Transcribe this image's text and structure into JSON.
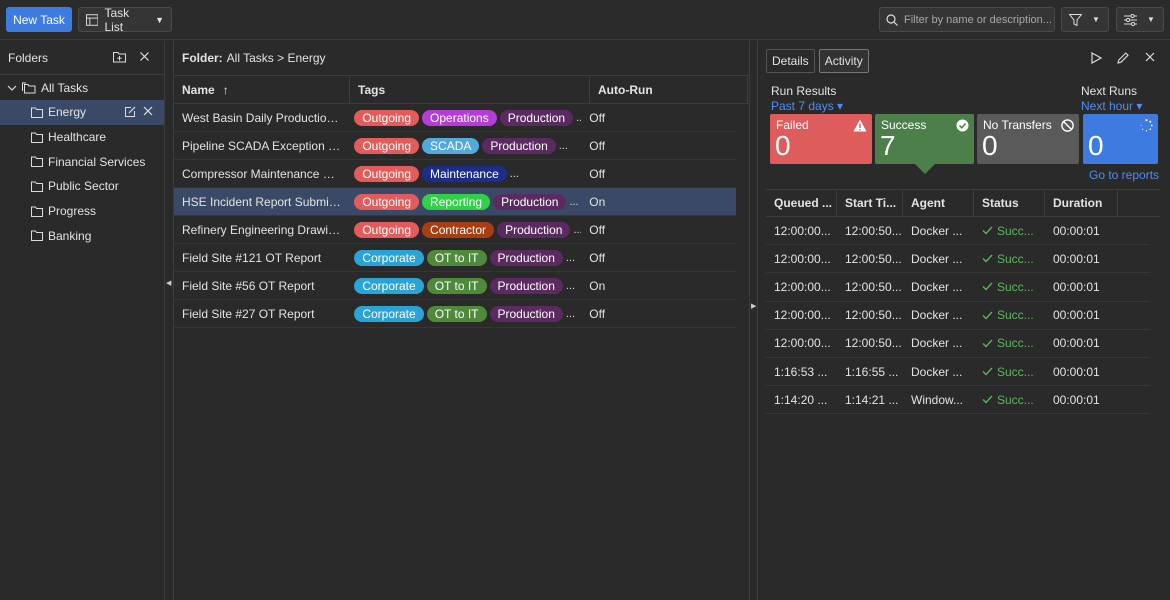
{
  "toolbar": {
    "new_task": "New Task",
    "task_list": "Task List",
    "filter_placeholder": "Filter by name or description..."
  },
  "folders": {
    "title": "Folders",
    "root": "All Tasks",
    "items": [
      {
        "label": "Energy",
        "selected": true
      },
      {
        "label": "Healthcare"
      },
      {
        "label": "Financial Services"
      },
      {
        "label": "Public Sector"
      },
      {
        "label": "Progress"
      },
      {
        "label": "Banking"
      }
    ]
  },
  "tasks": {
    "breadcrumb_label": "Folder:",
    "breadcrumb_path": "All Tasks > Energy",
    "columns": {
      "name": "Name",
      "sort_icon": "↑",
      "tags": "Tags",
      "autorun": "Auto-Run"
    },
    "rows": [
      {
        "name": "West Basin Daily Production ...",
        "tags": [
          {
            "label": "Outgoing",
            "color": "#e25c5c"
          },
          {
            "label": "Operations",
            "color": "#b43dd6"
          },
          {
            "label": "Production",
            "color": "#5a2a60"
          }
        ],
        "autorun": "Off"
      },
      {
        "name": "Pipeline SCADA Exception Ex...",
        "tags": [
          {
            "label": "Outgoing",
            "color": "#e25c5c"
          },
          {
            "label": "SCADA",
            "color": "#52a9dc"
          },
          {
            "label": "Production",
            "color": "#5a2a60"
          }
        ],
        "autorun": "Off"
      },
      {
        "name": "Compressor Maintenance Pa...",
        "tags": [
          {
            "label": "Outgoing",
            "color": "#e25c5c"
          },
          {
            "label": "Maintenance",
            "color": "#1d2d8c"
          }
        ],
        "autorun": "Off"
      },
      {
        "name": "HSE Incident Report Submiss...",
        "tags": [
          {
            "label": "Outgoing",
            "color": "#e25c5c"
          },
          {
            "label": "Reporting",
            "color": "#2fd147"
          },
          {
            "label": "Production",
            "color": "#5a2a60"
          }
        ],
        "autorun": "On",
        "selected": true
      },
      {
        "name": "Refinery Engineering Drawing...",
        "tags": [
          {
            "label": "Outgoing",
            "color": "#e25c5c"
          },
          {
            "label": "Contractor",
            "color": "#a83e14"
          },
          {
            "label": "Production",
            "color": "#5a2a60"
          }
        ],
        "autorun": "Off"
      },
      {
        "name": "Field Site #121 OT Report",
        "tags": [
          {
            "label": "Corporate",
            "color": "#2aa3d6"
          },
          {
            "label": "OT to IT",
            "color": "#4f8a3c"
          },
          {
            "label": "Production",
            "color": "#5a2a60"
          }
        ],
        "autorun": "Off"
      },
      {
        "name": "Field Site #56 OT Report",
        "tags": [
          {
            "label": "Corporate",
            "color": "#2aa3d6"
          },
          {
            "label": "OT to IT",
            "color": "#4f8a3c"
          },
          {
            "label": "Production",
            "color": "#5a2a60"
          }
        ],
        "autorun": "On"
      },
      {
        "name": "Field Site #27 OT Report",
        "tags": [
          {
            "label": "Corporate",
            "color": "#2aa3d6"
          },
          {
            "label": "OT to IT",
            "color": "#4f8a3c"
          },
          {
            "label": "Production",
            "color": "#5a2a60"
          }
        ],
        "autorun": "Off"
      }
    ]
  },
  "details": {
    "tabs": [
      {
        "label": "Details"
      },
      {
        "label": "Activity",
        "active": true
      }
    ],
    "run_results": "Run Results",
    "past_days": "Past 7 days ▾",
    "next_runs": "Next Runs",
    "next_hour": "Next hour ▾",
    "cards": {
      "failed": {
        "label": "Failed",
        "value": "0"
      },
      "success": {
        "label": "Success",
        "value": "7"
      },
      "no_transfers": {
        "label": "No Transfers",
        "value": "0"
      },
      "next": {
        "value": "0"
      }
    },
    "goto_reports": "Go to reports",
    "columns": {
      "queued": "Queued ...",
      "start": "Start Ti...",
      "agent": "Agent",
      "status": "Status",
      "duration": "Duration"
    },
    "rows": [
      {
        "queued": "12:00:00...",
        "start": "12:00:50...",
        "agent": "Docker ...",
        "status": "Succ...",
        "duration": "00:00:01"
      },
      {
        "queued": "12:00:00...",
        "start": "12:00:50...",
        "agent": "Docker ...",
        "status": "Succ...",
        "duration": "00:00:01"
      },
      {
        "queued": "12:00:00...",
        "start": "12:00:50...",
        "agent": "Docker ...",
        "status": "Succ...",
        "duration": "00:00:01"
      },
      {
        "queued": "12:00:00...",
        "start": "12:00:50...",
        "agent": "Docker ...",
        "status": "Succ...",
        "duration": "00:00:01"
      },
      {
        "queued": "12:00:00...",
        "start": "12:00:50...",
        "agent": "Docker ...",
        "status": "Succ...",
        "duration": "00:00:01"
      },
      {
        "queued": "1:16:53 ...",
        "start": "1:16:55 ...",
        "agent": "Docker ...",
        "status": "Succ...",
        "duration": "00:00:01"
      },
      {
        "queued": "1:14:20 ...",
        "start": "1:14:21 ...",
        "agent": "Window...",
        "status": "Succ...",
        "duration": "00:00:01"
      }
    ]
  },
  "colors": {
    "accent": "#3d7be0",
    "link": "#4e8ef0",
    "selected_row": "#3a4a66",
    "failed": "#df5c5c",
    "success": "#4c7f4a",
    "neutral": "#5a5a5a"
  }
}
